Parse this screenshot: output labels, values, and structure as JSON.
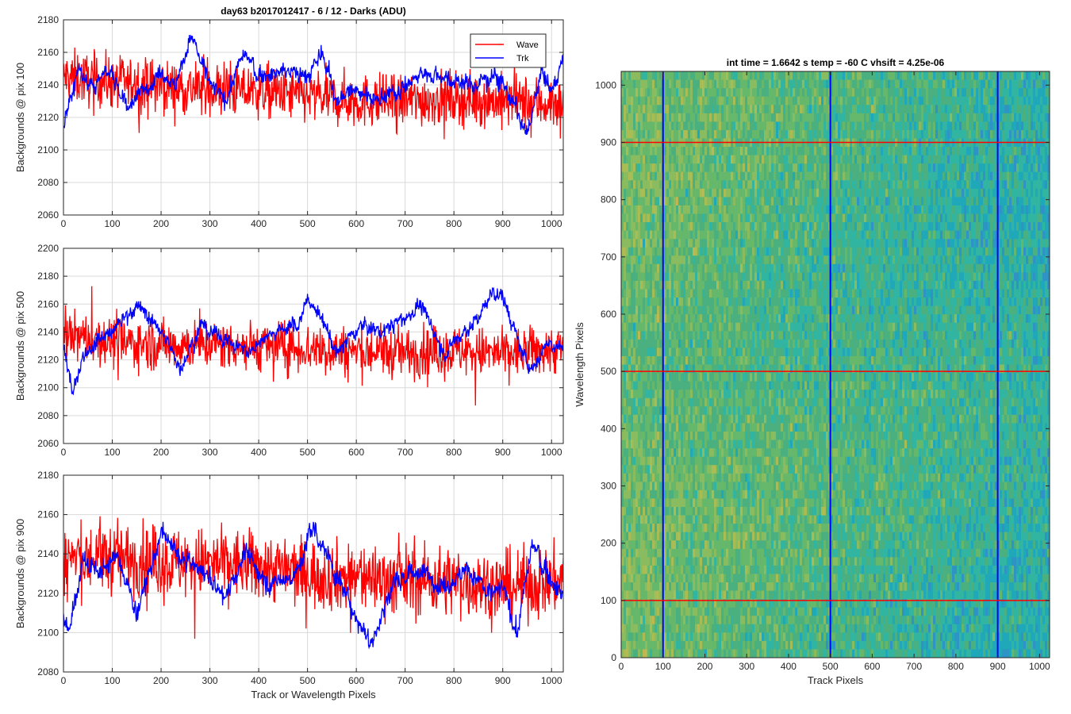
{
  "colors": {
    "wave": "#ff0000",
    "trk": "#0000ff",
    "grid": "#d9d9d9",
    "axis": "#262626"
  },
  "chart_data": [
    {
      "type": "line",
      "title": "day63 b2017012417 - 6 / 12 - Darks (ADU)",
      "ylabel": "Backgrounds @ pix 100",
      "xlabel": "",
      "xlim": [
        0,
        1024
      ],
      "ylim": [
        2060,
        2180
      ],
      "xticks": [
        0,
        100,
        200,
        300,
        400,
        500,
        600,
        700,
        800,
        900,
        1000
      ],
      "yticks": [
        2060,
        2080,
        2100,
        2120,
        2140,
        2160,
        2180
      ],
      "grid": true,
      "legend": {
        "position": "top-right",
        "entries": [
          "Wave",
          "Trk"
        ]
      },
      "series": [
        {
          "name": "Wave",
          "color": "#ff0000",
          "mean": 2137,
          "noise": 11,
          "x": [
            0,
            100,
            200,
            300,
            400,
            500,
            600,
            700,
            800,
            900,
            1024
          ],
          "values": [
            2145,
            2142,
            2139,
            2137,
            2136,
            2133,
            2130,
            2130,
            2132,
            2130,
            2128
          ]
        },
        {
          "name": "Trk",
          "color": "#0000ff",
          "mean": 2140,
          "noise": 3,
          "x": [
            0,
            30,
            60,
            100,
            130,
            160,
            200,
            230,
            260,
            300,
            330,
            370,
            400,
            450,
            500,
            530,
            560,
            600,
            650,
            700,
            750,
            800,
            850,
            880,
            900,
            950,
            980,
            1000,
            1024
          ],
          "values": [
            2115,
            2150,
            2140,
            2148,
            2125,
            2135,
            2150,
            2140,
            2170,
            2140,
            2130,
            2160,
            2145,
            2150,
            2145,
            2160,
            2130,
            2138,
            2130,
            2140,
            2148,
            2143,
            2140,
            2147,
            2143,
            2108,
            2150,
            2135,
            2158
          ]
        }
      ]
    },
    {
      "type": "line",
      "title": "",
      "ylabel": "Backgrounds @ pix 500",
      "xlabel": "",
      "xlim": [
        0,
        1024
      ],
      "ylim": [
        2060,
        2200
      ],
      "xticks": [
        0,
        100,
        200,
        300,
        400,
        500,
        600,
        700,
        800,
        900,
        1000
      ],
      "yticks": [
        2060,
        2080,
        2100,
        2120,
        2140,
        2160,
        2180,
        2200
      ],
      "grid": true,
      "series": [
        {
          "name": "Wave",
          "color": "#ff0000",
          "mean": 2130,
          "noise": 12,
          "x": [
            0,
            100,
            200,
            300,
            400,
            500,
            600,
            700,
            800,
            900,
            1024
          ],
          "values": [
            2138,
            2133,
            2131,
            2131,
            2130,
            2128,
            2126,
            2125,
            2127,
            2124,
            2128
          ]
        },
        {
          "name": "Trk",
          "color": "#0000ff",
          "mean": 2138,
          "noise": 3,
          "x": [
            0,
            20,
            40,
            80,
            100,
            150,
            200,
            240,
            280,
            330,
            380,
            420,
            480,
            500,
            520,
            560,
            610,
            650,
            700,
            730,
            780,
            820,
            850,
            880,
            900,
            940,
            960,
            990,
            1024
          ],
          "values": [
            2130,
            2095,
            2125,
            2138,
            2140,
            2160,
            2140,
            2115,
            2145,
            2135,
            2125,
            2140,
            2145,
            2163,
            2155,
            2125,
            2145,
            2140,
            2150,
            2160,
            2125,
            2140,
            2150,
            2170,
            2165,
            2125,
            2112,
            2133,
            2128
          ]
        }
      ]
    },
    {
      "type": "line",
      "title": "",
      "ylabel": "Backgrounds @ pix 900",
      "xlabel": "Track or Wavelength Pixels",
      "xlim": [
        0,
        1024
      ],
      "ylim": [
        2080,
        2180
      ],
      "xticks": [
        0,
        100,
        200,
        300,
        400,
        500,
        600,
        700,
        800,
        900,
        1000
      ],
      "yticks": [
        2080,
        2100,
        2120,
        2140,
        2160,
        2180
      ],
      "grid": true,
      "series": [
        {
          "name": "Wave",
          "color": "#ff0000",
          "mean": 2134,
          "noise": 12,
          "x": [
            0,
            100,
            200,
            300,
            400,
            500,
            600,
            700,
            800,
            900,
            1024
          ],
          "values": [
            2138,
            2138,
            2136,
            2135,
            2134,
            2130,
            2128,
            2127,
            2126,
            2123,
            2127
          ]
        },
        {
          "name": "Trk",
          "color": "#0000ff",
          "mean": 2130,
          "noise": 3,
          "x": [
            0,
            10,
            40,
            80,
            110,
            150,
            200,
            240,
            290,
            330,
            370,
            420,
            480,
            510,
            540,
            580,
            630,
            680,
            730,
            780,
            830,
            870,
            900,
            930,
            960,
            990,
            1024
          ],
          "values": [
            2110,
            2100,
            2138,
            2130,
            2140,
            2110,
            2150,
            2138,
            2130,
            2118,
            2140,
            2125,
            2130,
            2155,
            2140,
            2118,
            2095,
            2128,
            2130,
            2125,
            2133,
            2118,
            2122,
            2100,
            2145,
            2130,
            2120
          ]
        }
      ]
    },
    {
      "type": "heatmap",
      "title": "int time = 1.6642 s    temp = -60 C    vhsift = 4.25e-06",
      "xlabel": "Track Pixels",
      "ylabel": "Wavelength Pixels",
      "xlim": [
        0,
        1024
      ],
      "ylim": [
        0,
        1024
      ],
      "xticks": [
        0,
        100,
        200,
        300,
        400,
        500,
        600,
        700,
        800,
        900,
        1000
      ],
      "yticks": [
        0,
        100,
        200,
        300,
        400,
        500,
        600,
        700,
        800,
        900,
        1000
      ],
      "colormap": "parula",
      "base_color": "#4bb07f",
      "horizontal_lines": [
        100,
        500,
        900
      ],
      "vertical_lines": [
        100,
        500,
        900
      ],
      "hline_color": "#ff0000",
      "vline_color": "#0000ff"
    }
  ]
}
